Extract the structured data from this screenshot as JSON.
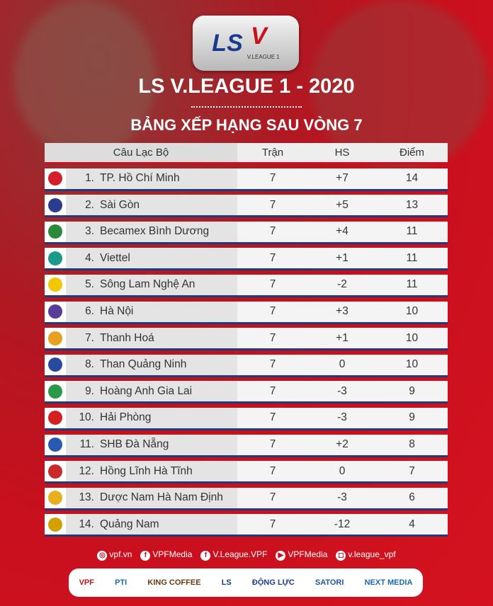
{
  "header": {
    "logo_text": "LS",
    "logo_sub": "V.LEAGUE 1",
    "title": "LS V.LEAGUE 1 - 2020",
    "subtitle": "BẢNG XẾP HẠNG SAU VÒNG 7"
  },
  "table": {
    "columns": [
      "Câu Lạc Bộ",
      "Trận",
      "HS",
      "Điểm"
    ],
    "rows": [
      {
        "rank": "1.",
        "club": "TP. Hồ Chí Minh",
        "played": "7",
        "gd": "+7",
        "pts": "14",
        "color": "#d4202a"
      },
      {
        "rank": "2.",
        "club": "Sài Gòn",
        "played": "7",
        "gd": "+5",
        "pts": "13",
        "color": "#2a3d8f"
      },
      {
        "rank": "3.",
        "club": "Becamex Bình Dương",
        "played": "7",
        "gd": "+4",
        "pts": "11",
        "color": "#2a8a3a"
      },
      {
        "rank": "4.",
        "club": "Viettel",
        "played": "7",
        "gd": "+1",
        "pts": "11",
        "color": "#1a9a8a"
      },
      {
        "rank": "5.",
        "club": "Sông Lam Nghệ An",
        "played": "7",
        "gd": "-2",
        "pts": "11",
        "color": "#f0c800"
      },
      {
        "rank": "6.",
        "club": "Hà Nội",
        "played": "7",
        "gd": "+3",
        "pts": "10",
        "color": "#5a3d9a"
      },
      {
        "rank": "7.",
        "club": "Thanh Hoá",
        "played": "7",
        "gd": "+1",
        "pts": "10",
        "color": "#e8a020"
      },
      {
        "rank": "8.",
        "club": "Than Quảng Ninh",
        "played": "7",
        "gd": "0",
        "pts": "10",
        "color": "#2a4aa0"
      },
      {
        "rank": "9.",
        "club": "Hoàng Anh Gia Lai",
        "played": "7",
        "gd": "-3",
        "pts": "9",
        "color": "#2a9a4a"
      },
      {
        "rank": "10.",
        "club": "Hải Phòng",
        "played": "7",
        "gd": "-3",
        "pts": "9",
        "color": "#d42020"
      },
      {
        "rank": "11.",
        "club": "SHB Đà Nẵng",
        "played": "7",
        "gd": "+2",
        "pts": "8",
        "color": "#2a5ab0"
      },
      {
        "rank": "12.",
        "club": "Hồng Lĩnh Hà Tĩnh",
        "played": "7",
        "gd": "0",
        "pts": "7",
        "color": "#c82a2a"
      },
      {
        "rank": "13.",
        "club": "Dược Nam Hà Nam Định",
        "played": "7",
        "gd": "-3",
        "pts": "6",
        "color": "#e8b020"
      },
      {
        "rank": "14.",
        "club": "Quảng Nam",
        "played": "7",
        "gd": "-12",
        "pts": "4",
        "color": "#d4a000"
      }
    ]
  },
  "social": [
    {
      "icon": "globe-icon",
      "label": "vpf.vn"
    },
    {
      "icon": "facebook-icon",
      "label": "VPFMedia"
    },
    {
      "icon": "facebook-icon",
      "label": "V.League.VPF"
    },
    {
      "icon": "youtube-icon",
      "label": "VPFMedia"
    },
    {
      "icon": "instagram-icon",
      "label": "v.league_vpf"
    }
  ],
  "sponsors": [
    "VPF",
    "PTI",
    "KING COFFEE",
    "LS",
    "ĐỘNG LỰC",
    "SATORI",
    "NEXT MEDIA"
  ],
  "colors": {
    "background": "#c8101e",
    "row_border": "#233a7a",
    "header_border": "#c8101e"
  }
}
